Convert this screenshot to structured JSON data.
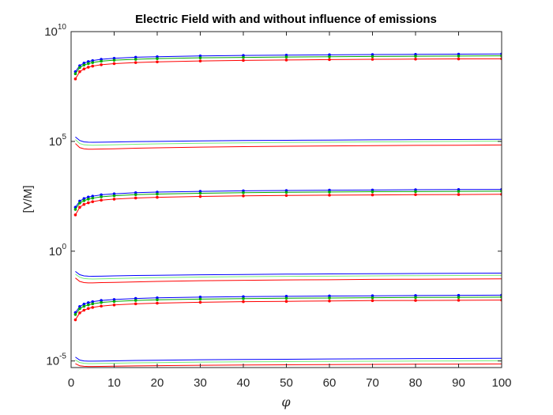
{
  "chart_data": {
    "type": "line",
    "title": "Electric Field with and without influence of emissions",
    "xlabel": "φ",
    "ylabel": "[V/M]",
    "xlim": [
      0,
      100
    ],
    "ylim": [
      5e-06,
      10000000000.0
    ],
    "yscale": "log",
    "grid": false,
    "legend": "none",
    "xticks": [
      "0",
      "10",
      "20",
      "30",
      "40",
      "50",
      "60",
      "70",
      "80",
      "90",
      "100"
    ],
    "yticks": [
      {
        "base": "10",
        "exp": "-5",
        "value": 1e-05
      },
      {
        "base": "10",
        "exp": "0",
        "value": 1
      },
      {
        "base": "10",
        "exp": "5",
        "value": 100000.0
      },
      {
        "base": "10",
        "exp": "10",
        "value": 10000000000.0
      }
    ],
    "x": [
      1,
      2,
      3,
      4,
      5,
      7,
      10,
      15,
      20,
      30,
      40,
      50,
      60,
      70,
      80,
      90,
      100
    ],
    "series": [
      {
        "color": "#0000ff",
        "markers": true,
        "values": [
          150000000.0,
          280000000.0,
          370000000.0,
          430000000.0,
          480000000.0,
          550000000.0,
          610000000.0,
          680000000.0,
          720000000.0,
          780000000.0,
          820000000.0,
          850000000.0,
          880000000.0,
          900000000.0,
          920000000.0,
          940000000.0,
          960000000.0
        ]
      },
      {
        "color": "#00aa00",
        "markers": true,
        "values": [
          120000000.0,
          230000000.0,
          300000000.0,
          350000000.0,
          390000000.0,
          450000000.0,
          500000000.0,
          550000000.0,
          590000000.0,
          640000000.0,
          670000000.0,
          700000000.0,
          720000000.0,
          740000000.0,
          760000000.0,
          770000000.0,
          790000000.0
        ]
      },
      {
        "color": "#ff0000",
        "markers": true,
        "values": [
          70000000.0,
          150000000.0,
          200000000.0,
          240000000.0,
          270000000.0,
          310000000.0,
          350000000.0,
          390000000.0,
          420000000.0,
          460000000.0,
          490000000.0,
          510000000.0,
          530000000.0,
          550000000.0,
          560000000.0,
          570000000.0,
          580000000.0
        ]
      },
      {
        "color": "#0000ff",
        "markers": false,
        "values": [
          160000.0,
          110000.0,
          95000.0,
          92000.0,
          91000.0,
          92000.0,
          94000.0,
          98000.0,
          100000.0,
          105000.0,
          110000.0,
          112000.0,
          115000.0,
          118000.0,
          120000.0,
          122000.0,
          125000.0
        ]
      },
      {
        "color": "#77ee77",
        "markers": false,
        "values": [
          120000.0,
          80000.0,
          70000.0,
          68000.0,
          67000.0,
          68000.0,
          70000.0,
          74000.0,
          77000.0,
          82000.0,
          86000.0,
          89000.0,
          92000.0,
          95000.0,
          97000.0,
          100000.0,
          102000.0
        ]
      },
      {
        "color": "#ff0000",
        "markers": false,
        "values": [
          80000.0,
          52000.0,
          46000.0,
          44000.0,
          44000.0,
          45000.0,
          46000.0,
          49000.0,
          51000.0,
          55000.0,
          58000.0,
          60000.0,
          62000.0,
          64000.0,
          66000.0,
          67000.0,
          69000.0
        ]
      },
      {
        "color": "#0000ff",
        "markers": true,
        "values": [
          100.0,
          190.0,
          250.0,
          290.0,
          320.0,
          370.0,
          410.0,
          460.0,
          490.0,
          530.0,
          560.0,
          580.0,
          600.0,
          610.0,
          630.0,
          640.0,
          650.0
        ]
      },
      {
        "color": "#00aa00",
        "markers": true,
        "values": [
          80.0,
          155.0,
          200.0,
          235.0,
          260.0,
          300.0,
          335.0,
          375.0,
          400.0,
          435.0,
          460.0,
          480.0,
          495.0,
          510.0,
          520.0,
          530.0,
          540.0
        ]
      },
      {
        "color": "#ff0000",
        "markers": true,
        "values": [
          45.0,
          100.0,
          135.0,
          160.0,
          180.0,
          210.0,
          235.0,
          265.0,
          285.0,
          310.0,
          330.0,
          345.0,
          355.0,
          365.0,
          375.0,
          380.0,
          390.0
        ]
      },
      {
        "color": "#0000ff",
        "markers": false,
        "values": [
          0.12,
          0.085,
          0.075,
          0.073,
          0.072,
          0.073,
          0.075,
          0.078,
          0.08,
          0.084,
          0.087,
          0.09,
          0.092,
          0.094,
          0.096,
          0.098,
          0.1
        ]
      },
      {
        "color": "#77ee77",
        "markers": false,
        "values": [
          0.09,
          0.065,
          0.057,
          0.055,
          0.054,
          0.055,
          0.057,
          0.06,
          0.062,
          0.066,
          0.069,
          0.071,
          0.073,
          0.075,
          0.077,
          0.078,
          0.08
        ]
      },
      {
        "color": "#ff0000",
        "markers": false,
        "values": [
          0.06,
          0.042,
          0.037,
          0.036,
          0.036,
          0.037,
          0.038,
          0.04,
          0.042,
          0.045,
          0.047,
          0.049,
          0.05,
          0.052,
          0.053,
          0.054,
          0.055
        ]
      },
      {
        "color": "#0000ff",
        "markers": true,
        "values": [
          0.0016,
          0.003,
          0.0039,
          0.0045,
          0.005,
          0.0057,
          0.0063,
          0.007,
          0.0075,
          0.0081,
          0.0085,
          0.0088,
          0.0091,
          0.0093,
          0.0095,
          0.0097,
          0.0099
        ]
      },
      {
        "color": "#00aa00",
        "markers": true,
        "values": [
          0.0013,
          0.0024,
          0.0031,
          0.0036,
          0.004,
          0.0046,
          0.0051,
          0.0057,
          0.0061,
          0.0066,
          0.0069,
          0.0072,
          0.0074,
          0.0076,
          0.0078,
          0.0079,
          0.0081
        ]
      },
      {
        "color": "#ff0000",
        "markers": true,
        "values": [
          0.00075,
          0.00155,
          0.00205,
          0.00245,
          0.00275,
          0.00315,
          0.00355,
          0.004,
          0.0043,
          0.0047,
          0.005,
          0.0052,
          0.0054,
          0.0056,
          0.0057,
          0.0058,
          0.0059
        ]
      },
      {
        "color": "#0000ff",
        "markers": false,
        "values": [
          1.5e-05,
          1.1e-05,
          1e-05,
          9.8e-06,
          9.8e-06,
          9.9e-06,
          1.01e-05,
          1.05e-05,
          1.08e-05,
          1.13e-05,
          1.17e-05,
          1.2e-05,
          1.23e-05,
          1.26e-05,
          1.28e-05,
          1.3e-05,
          1.32e-05
        ]
      },
      {
        "color": "#77ee77",
        "markers": false,
        "values": [
          1.1e-05,
          8.5e-06,
          7.8e-06,
          7.6e-06,
          7.6e-06,
          7.7e-06,
          7.9e-06,
          8.2e-06,
          8.4e-06,
          8.8e-06,
          9.1e-06,
          9.3e-06,
          9.5e-06,
          9.7e-06,
          9.9e-06,
          1e-05,
          1.02e-05
        ]
      },
      {
        "color": "#ff0000",
        "markers": false,
        "values": [
          7.5e-06,
          6e-06,
          5.7e-06,
          5.6e-06,
          5.6e-06,
          5.65e-06,
          5.75e-06,
          5.95e-06,
          6.1e-06,
          6.35e-06,
          6.55e-06,
          6.7e-06,
          6.85e-06,
          7e-06,
          7.1e-06,
          7.2e-06,
          7.3e-06
        ]
      }
    ]
  }
}
